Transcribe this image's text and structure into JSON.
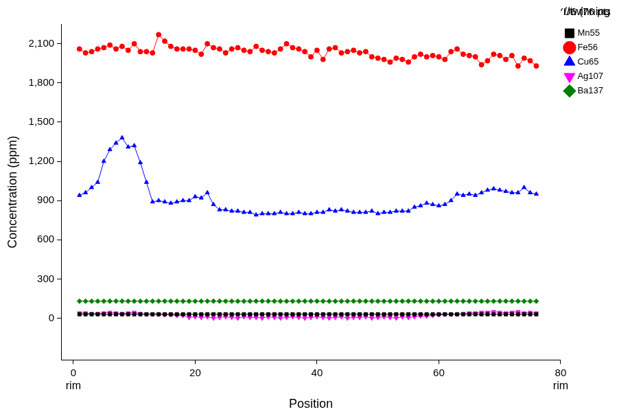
{
  "chart_data": {
    "type": "line",
    "title": "//twinning",
    "legend_title": "YU6 (76 pts)",
    "x_label": "Position",
    "y_label": "Concentration (ppm)",
    "annotations": [
      {
        "text": "rim",
        "x": 0
      },
      {
        "text": "rim",
        "x": 80
      }
    ],
    "x": [
      1,
      2,
      3,
      4,
      5,
      6,
      7,
      8,
      9,
      10,
      11,
      12,
      13,
      14,
      15,
      16,
      17,
      18,
      19,
      20,
      21,
      22,
      23,
      24,
      25,
      26,
      27,
      28,
      29,
      30,
      31,
      32,
      33,
      34,
      35,
      36,
      37,
      38,
      39,
      40,
      41,
      42,
      43,
      44,
      45,
      46,
      47,
      48,
      49,
      50,
      51,
      52,
      53,
      54,
      55,
      56,
      57,
      58,
      59,
      60,
      61,
      62,
      63,
      64,
      65,
      66,
      67,
      68,
      69,
      70,
      71,
      72,
      73,
      74,
      75,
      76
    ],
    "series": [
      {
        "name": "Mn55",
        "color": "#000000",
        "marker": "square",
        "values": [
          30,
          30,
          30,
          30,
          30,
          30,
          30,
          30,
          30,
          30,
          30,
          30,
          30,
          30,
          30,
          30,
          30,
          30,
          30,
          30,
          30,
          30,
          30,
          30,
          30,
          30,
          30,
          30,
          30,
          30,
          30,
          30,
          30,
          30,
          30,
          30,
          30,
          30,
          30,
          30,
          30,
          30,
          30,
          30,
          30,
          30,
          30,
          30,
          30,
          30,
          30,
          30,
          30,
          30,
          30,
          30,
          30,
          30,
          30,
          30,
          30,
          30,
          30,
          30,
          30,
          30,
          30,
          30,
          30,
          30,
          30,
          30,
          30,
          30,
          30,
          30
        ]
      },
      {
        "name": "Fe56",
        "color": "#ff0000",
        "marker": "circle",
        "values": [
          2060,
          2030,
          2040,
          2060,
          2070,
          2090,
          2060,
          2080,
          2050,
          2100,
          2040,
          2040,
          2030,
          2170,
          2120,
          2080,
          2060,
          2060,
          2060,
          2050,
          2020,
          2100,
          2070,
          2060,
          2030,
          2060,
          2070,
          2050,
          2040,
          2080,
          2050,
          2040,
          2030,
          2060,
          2100,
          2070,
          2060,
          2040,
          2000,
          2050,
          1980,
          2060,
          2070,
          2030,
          2040,
          2050,
          2030,
          2040,
          2000,
          1990,
          1980,
          1960,
          1990,
          1980,
          1960,
          2000,
          2020,
          2000,
          2010,
          2000,
          1980,
          2040,
          2060,
          2020,
          2010,
          2000,
          1940,
          1970,
          2020,
          2010,
          1980,
          2010,
          1930,
          1990,
          1970,
          1930
        ]
      },
      {
        "name": "Cu65",
        "color": "#0000ff",
        "marker": "triangle",
        "values": [
          940,
          960,
          1000,
          1040,
          1200,
          1290,
          1340,
          1380,
          1310,
          1320,
          1190,
          1040,
          890,
          900,
          890,
          880,
          890,
          900,
          900,
          930,
          920,
          960,
          870,
          830,
          830,
          820,
          820,
          810,
          810,
          790,
          800,
          800,
          800,
          810,
          800,
          800,
          810,
          800,
          800,
          810,
          810,
          830,
          820,
          830,
          820,
          810,
          810,
          810,
          820,
          800,
          810,
          810,
          820,
          820,
          820,
          850,
          860,
          880,
          870,
          860,
          870,
          900,
          950,
          940,
          950,
          940,
          960,
          980,
          990,
          980,
          970,
          960,
          960,
          1000,
          960,
          950
        ]
      },
      {
        "name": "Ag107",
        "color": "#ff00ff",
        "marker": "triangle-down",
        "values": [
          40,
          40,
          35,
          35,
          40,
          45,
          40,
          35,
          40,
          45,
          35,
          30,
          30,
          30,
          25,
          25,
          20,
          20,
          5,
          10,
          5,
          10,
          0,
          5,
          10,
          5,
          0,
          10,
          5,
          5,
          0,
          10,
          5,
          0,
          5,
          10,
          5,
          0,
          5,
          10,
          5,
          0,
          5,
          10,
          0,
          5,
          5,
          10,
          0,
          5,
          10,
          5,
          0,
          10,
          5,
          10,
          15,
          15,
          20,
          25,
          30,
          30,
          30,
          35,
          40,
          40,
          45,
          45,
          50,
          45,
          40,
          45,
          50,
          40,
          45,
          40
        ]
      },
      {
        "name": "Ba137",
        "color": "#008000",
        "marker": "diamond",
        "values": [
          130,
          130,
          130,
          130,
          130,
          130,
          130,
          130,
          130,
          130,
          130,
          130,
          130,
          130,
          130,
          130,
          130,
          130,
          130,
          130,
          130,
          130,
          130,
          130,
          130,
          130,
          130,
          130,
          130,
          130,
          130,
          130,
          130,
          130,
          130,
          130,
          130,
          130,
          130,
          130,
          130,
          130,
          130,
          130,
          130,
          130,
          130,
          130,
          130,
          130,
          130,
          130,
          130,
          130,
          130,
          130,
          130,
          130,
          130,
          130,
          130,
          130,
          130,
          130,
          130,
          130,
          130,
          130,
          130,
          130,
          130,
          130,
          130,
          130,
          130,
          130
        ]
      }
    ],
    "xlim": [
      -2,
      80
    ],
    "xticks": [
      0,
      20,
      40,
      60,
      80
    ],
    "ylim": [
      -320,
      2250
    ],
    "yticks": [
      0,
      300,
      600,
      900,
      1200,
      1500,
      1800,
      2100
    ],
    "grid": false,
    "legend": "right"
  }
}
